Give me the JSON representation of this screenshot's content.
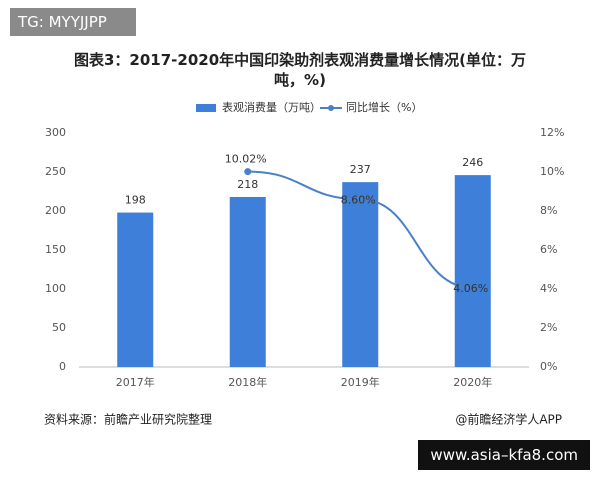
{
  "header": {
    "tag": "TG: MYYJJPP"
  },
  "chart_data": {
    "type": "bar-line",
    "title": "图表3：2017-2020年中国印染助剂表观消费量增长情况(单位：万吨，%)",
    "categories": [
      "2017年",
      "2018年",
      "2019年",
      "2020年"
    ],
    "series": [
      {
        "name": "表观消费量（万吨）",
        "type": "bar",
        "color": "#3d7fd9",
        "values": [
          198,
          218,
          237,
          246
        ]
      },
      {
        "name": "同比增长（%）",
        "type": "line",
        "axis": "y2",
        "color": "#4a80c8",
        "values": [
          null,
          10.02,
          8.6,
          4.06
        ],
        "value_labels": [
          null,
          "10.02%",
          "8.60%",
          "4.06%"
        ]
      }
    ],
    "ylim": [
      0,
      300
    ],
    "yticks": [
      0,
      50,
      100,
      150,
      200,
      250,
      300
    ],
    "y2lim": [
      0,
      12
    ],
    "y2ticks": [
      {
        "value": 0,
        "label": "0%"
      },
      {
        "value": 2,
        "label": "2%"
      },
      {
        "value": 4,
        "label": "4%"
      },
      {
        "value": 6,
        "label": "6%"
      },
      {
        "value": 8,
        "label": "8%"
      },
      {
        "value": 10,
        "label": "10%"
      },
      {
        "value": 12,
        "label": "12%"
      }
    ],
    "legend": "top",
    "grid": false,
    "source": "资料来源：前瞻产业研究院整理",
    "credit": "@前瞻经济学人APP"
  },
  "footer": {
    "url": "www.asia–kfa8.com"
  }
}
